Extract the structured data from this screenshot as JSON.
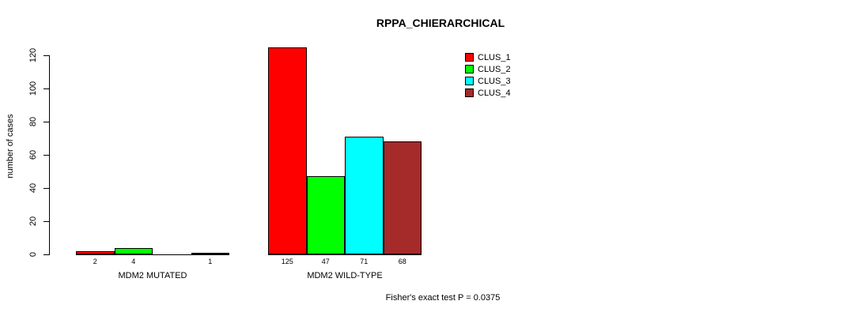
{
  "chart_data": {
    "type": "bar",
    "title": "RPPA_CHIERARCHICAL",
    "ylabel": "number of cases",
    "xlabel": "",
    "ylim": [
      0,
      120
    ],
    "yticks": [
      0,
      20,
      40,
      60,
      80,
      100,
      120
    ],
    "grid": false,
    "categories": [
      "MDM2 MUTATED",
      "MDM2 WILD-TYPE"
    ],
    "series": [
      {
        "name": "CLUS_1",
        "color": "#FF0000",
        "values": [
          2,
          125
        ]
      },
      {
        "name": "CLUS_2",
        "color": "#00FF00",
        "values": [
          4,
          47
        ]
      },
      {
        "name": "CLUS_3",
        "color": "#00FFFF",
        "values": [
          0,
          71
        ]
      },
      {
        "name": "CLUS_4",
        "color": "#A52A2A",
        "values": [
          1,
          68
        ]
      }
    ],
    "bar_value_labels": {
      "shown_below_bars": true,
      "zero_values_unlabeled": true,
      "MDM2_MUTATED": [
        "2",
        "4",
        "",
        "1"
      ],
      "MDM2_WILD_TYPE": [
        "125",
        "47",
        "71",
        "68"
      ]
    },
    "legend": {
      "position": "top-right",
      "entries": [
        "CLUS_1",
        "CLUS_2",
        "CLUS_3",
        "CLUS_4"
      ]
    },
    "footnote": "Fisher's exact test P = 0.0375"
  }
}
